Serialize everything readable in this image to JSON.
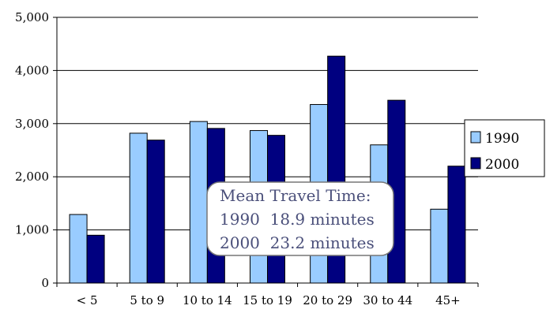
{
  "chart_data": {
    "type": "bar",
    "categories": [
      "< 5",
      "5 to 9",
      "10 to 14",
      "15 to 19",
      "20 to 29",
      "30 to 44",
      "45+"
    ],
    "series": [
      {
        "name": "1990",
        "values": [
          1290,
          2820,
          3040,
          2870,
          3360,
          2600,
          1390
        ],
        "color": "#99ccff"
      },
      {
        "name": "2000",
        "values": [
          900,
          2690,
          2910,
          2780,
          4270,
          3440,
          2200
        ],
        "color": "#000080"
      }
    ],
    "ylim": [
      0,
      5000
    ],
    "yticks": [
      "0",
      "1,000",
      "2,000",
      "3,000",
      "4,000",
      "5,000"
    ],
    "grid": true,
    "legend_position": "right",
    "annotation": {
      "lines": [
        "Mean Travel Time:",
        "1990  18.9 minutes",
        "2000  23.2 minutes"
      ]
    }
  }
}
